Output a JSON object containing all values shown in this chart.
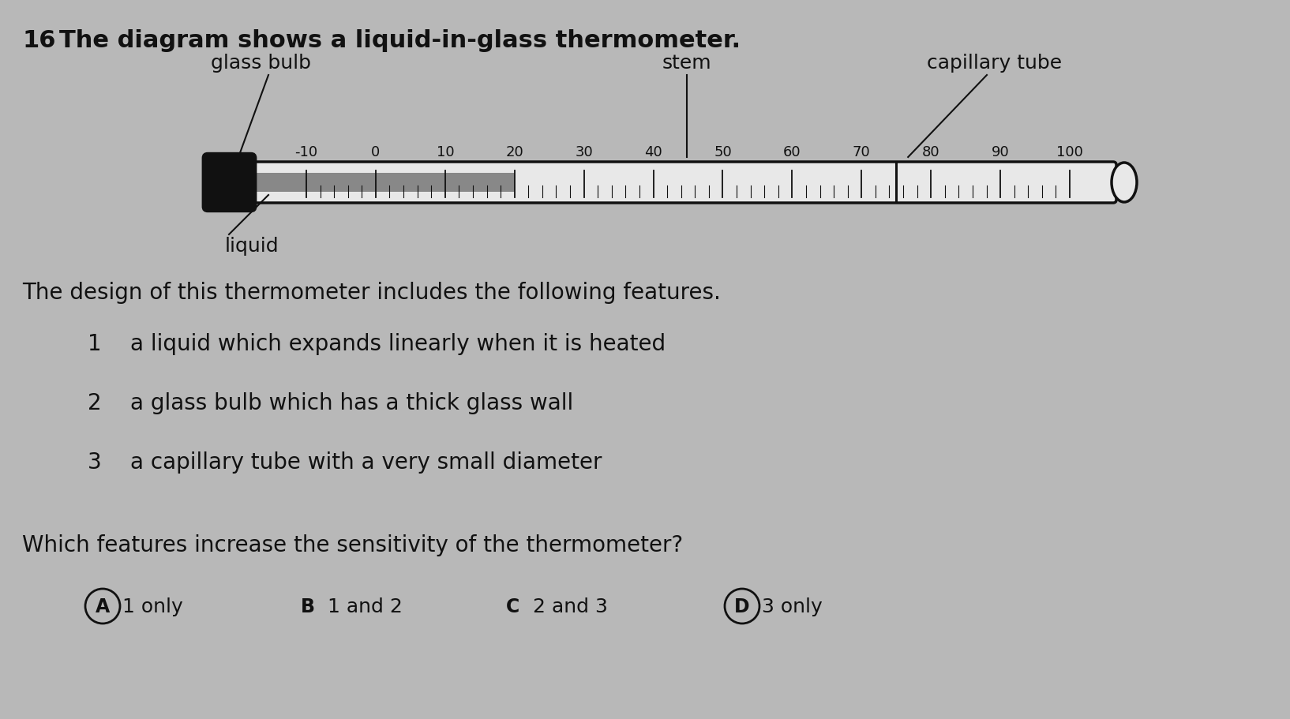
{
  "bg_color": "#b8b8b8",
  "question_number": "16",
  "question_text": "The diagram shows a liquid-in-glass thermometer.",
  "label_glass_bulb": "glass bulb",
  "label_stem": "stem",
  "label_capillary_tube": "capillary tube",
  "label_liquid": "liquid",
  "tick_labels": [
    "-10",
    "0",
    "10",
    "20",
    "30",
    "40",
    "50",
    "60",
    "70",
    "80",
    "90",
    "100"
  ],
  "tick_values": [
    -10,
    0,
    10,
    20,
    30,
    40,
    50,
    60,
    70,
    80,
    90,
    100
  ],
  "description_header": "The design of this thermometer includes the following features.",
  "features": [
    "a liquid which expands linearly when it is heated",
    "a glass bulb which has a thick glass wall",
    "a capillary tube with a very small diameter"
  ],
  "feature_numbers": [
    "1",
    "2",
    "3"
  ],
  "question2": "Which features increase the sensitivity of the thermometer?",
  "answers": [
    "A",
    "B",
    "C",
    "D"
  ],
  "answer_texts": [
    "1 only",
    "1 and 2",
    "2 and 3",
    "3 only"
  ],
  "circled_answers": [
    "A",
    "D"
  ],
  "bulb_color": "#111111",
  "tube_border_color": "#111111",
  "tube_fill_color": "#e8e8e8",
  "liquid_fill_color": "#888888",
  "font_color": "#111111",
  "scale_min": -10,
  "scale_max": 100,
  "liquid_level": 20
}
